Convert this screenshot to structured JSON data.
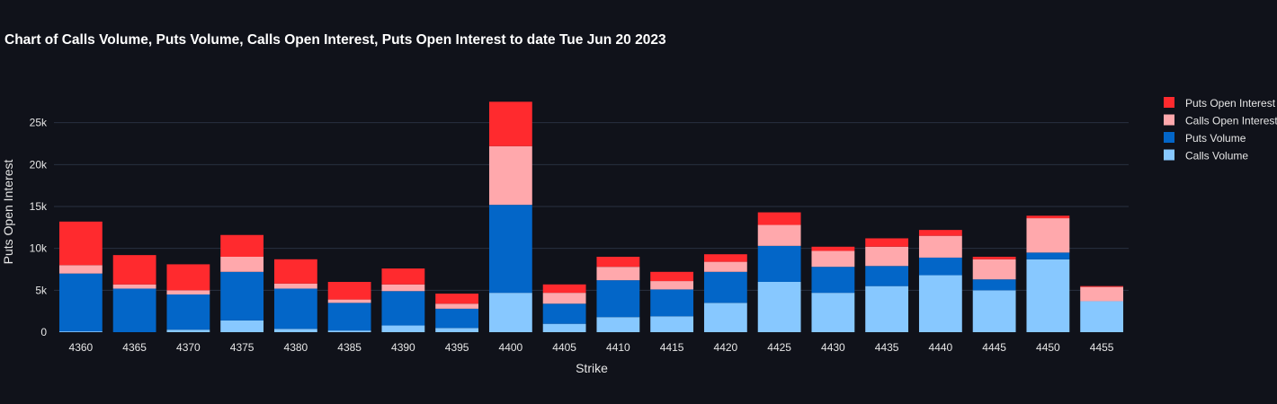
{
  "chart_data": {
    "type": "bar",
    "stacked": true,
    "title": "Chart of Calls Volume, Puts Volume, Calls Open Interest, Puts Open Interest to date Tue Jun 20 2023",
    "xlabel": "Strike",
    "ylabel": "Puts Open Interest",
    "ylim": [
      0,
      30000
    ],
    "yticks": [
      0,
      5000,
      10000,
      15000,
      20000,
      25000
    ],
    "ytick_labels": [
      "0",
      "5k",
      "10k",
      "15k",
      "20k",
      "25k"
    ],
    "grid": true,
    "legend_position": "right",
    "categories": [
      "4360",
      "4365",
      "4370",
      "4375",
      "4380",
      "4385",
      "4390",
      "4395",
      "4400",
      "4405",
      "4410",
      "4415",
      "4420",
      "4425",
      "4430",
      "4435",
      "4440",
      "4445",
      "4450",
      "4455"
    ],
    "series": [
      {
        "name": "Calls Volume",
        "color": "#87c8ff",
        "values": [
          100,
          0,
          300,
          1400,
          400,
          200,
          800,
          500,
          4700,
          1000,
          1800,
          1900,
          3500,
          6000,
          4700,
          5500,
          6800,
          5000,
          8700,
          3700
        ]
      },
      {
        "name": "Puts Volume",
        "color": "#0366c8",
        "values": [
          6900,
          5200,
          4200,
          5800,
          4800,
          3300,
          4100,
          2300,
          10500,
          2400,
          4400,
          3200,
          3700,
          4300,
          3100,
          2400,
          2100,
          1300,
          800,
          0
        ]
      },
      {
        "name": "Calls Open Interest",
        "color": "#ffa8ac",
        "values": [
          1000,
          500,
          500,
          1800,
          600,
          400,
          800,
          600,
          7000,
          1300,
          1600,
          1000,
          1200,
          2500,
          1900,
          2300,
          2600,
          2400,
          4100,
          1700
        ]
      },
      {
        "name": "Puts Open Interest",
        "color": "#ff2a2e",
        "values": [
          5200,
          3500,
          3100,
          2600,
          2900,
          2100,
          1900,
          1200,
          5300,
          1000,
          1200,
          1100,
          900,
          1500,
          500,
          1000,
          700,
          300,
          300,
          100
        ]
      }
    ],
    "legend_order": [
      "Puts Open Interest",
      "Calls Open Interest",
      "Puts Volume",
      "Calls Volume"
    ]
  }
}
